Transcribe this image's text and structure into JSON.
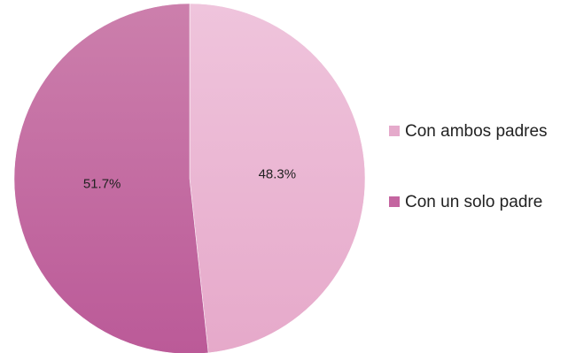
{
  "chart_data": {
    "type": "pie",
    "title": "",
    "slices": [
      {
        "label": "Con ambos padres",
        "value": 48.3,
        "value_label": "48.3%",
        "color": "#e5aacb"
      },
      {
        "label": "Con un solo padre",
        "value": 51.7,
        "value_label": "51.7%",
        "color": "#c465a0"
      }
    ],
    "start": "12 o'clock",
    "direction": "clockwise",
    "legend_position": "right"
  }
}
